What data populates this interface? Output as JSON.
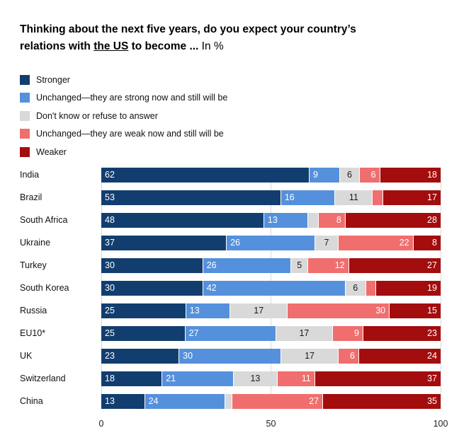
{
  "title": {
    "line1": "Thinking about the next five years, do you expect your country’s",
    "line2_pre": "relations with ",
    "line2_underlined": "the US",
    "line2_post": " to become ... ",
    "line2_suffix": "In %"
  },
  "chart_data": {
    "type": "bar",
    "stacked": true,
    "orientation": "horizontal",
    "title": "Thinking about the next five years, do you expect your country’s relations with the US to become ... In %",
    "categories": [
      "India",
      "Brazil",
      "South Africa",
      "Ukraine",
      "Turkey",
      "South Korea",
      "Russia",
      "EU10*",
      "UK",
      "Switzerland",
      "China"
    ],
    "series": [
      {
        "name": "Stronger",
        "color": "#123e6f",
        "label_color": "#ffffff",
        "align": "left",
        "values": [
          62,
          53,
          48,
          37,
          30,
          30,
          25,
          25,
          23,
          18,
          13
        ]
      },
      {
        "name": "Unchanged—they are strong now and still will be",
        "color": "#5590dc",
        "label_color": "#ffffff",
        "align": "left",
        "values": [
          9,
          16,
          13,
          26,
          26,
          42,
          13,
          27,
          30,
          21,
          24
        ]
      },
      {
        "name": "Don't know or refuse to answer",
        "color": "#d9d9d9",
        "label_color": "#1a1a1a",
        "align": "center",
        "values": [
          6,
          11,
          3,
          7,
          5,
          6,
          17,
          17,
          17,
          13,
          2
        ]
      },
      {
        "name": "Unchanged—they are weak now and still will be",
        "color": "#f06e6e",
        "label_color": "#ffffff",
        "align": "right",
        "values": [
          6,
          3,
          8,
          22,
          12,
          3,
          30,
          9,
          6,
          11,
          27
        ]
      },
      {
        "name": "Weaker",
        "color": "#a30d0d",
        "label_color": "#ffffff",
        "align": "right",
        "values": [
          18,
          17,
          28,
          8,
          27,
          19,
          15,
          23,
          24,
          37,
          35
        ]
      }
    ],
    "hide_label_below": 4,
    "xlim": [
      0,
      100
    ],
    "x_ticks": [
      0,
      50,
      100
    ],
    "gridlines": [
      0,
      50,
      100
    ],
    "legend_position": "top-left",
    "grid": "vertical-light"
  }
}
